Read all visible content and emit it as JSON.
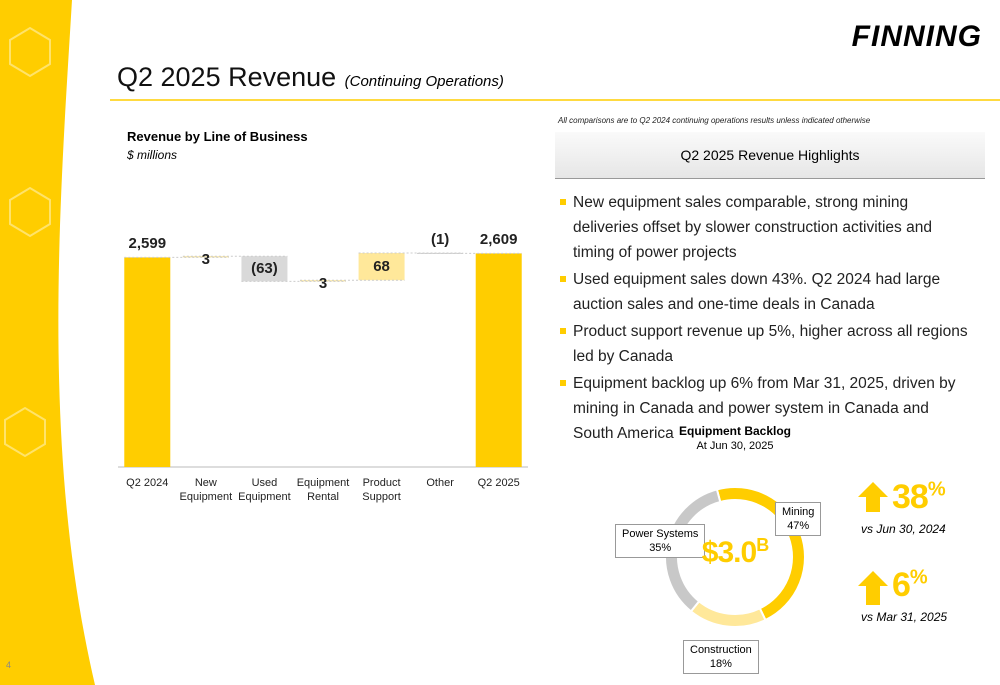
{
  "logo": "FINNING",
  "title": "Q2 2025 Revenue",
  "subtitle": "(Continuing Operations)",
  "page_number": "4",
  "note": "All comparisons are to Q2 2024 continuing operations results unless indicated otherwise",
  "highlights": {
    "title": "Q2 2025 Revenue Highlights",
    "bullets": [
      "New equipment sales comparable, strong mining deliveries offset by slower construction activities and timing of power projects",
      "Used equipment sales down 43%. Q2 2024 had large auction sales and one-time deals in Canada",
      "Product support revenue up 5%, higher across all regions led by Canada",
      "Equipment backlog up 6% from Mar 31, 2025, driven by mining in Canada and power system in Canada and South America"
    ]
  },
  "chart_data": [
    {
      "type": "waterfall",
      "title": "Revenue by Line of Business",
      "subtitle": "$ millions",
      "categories": [
        "Q2 2024",
        "New Equipment",
        "Used Equipment",
        "Equipment Rental",
        "Product Support",
        "Other",
        "Q2 2025"
      ],
      "values": [
        2599,
        3,
        -63,
        3,
        68,
        -1,
        2609
      ],
      "value_labels": [
        "2,599",
        "3",
        "(63)",
        "3",
        "68",
        "(1)",
        "2,609"
      ],
      "colors": [
        "#ffcd00",
        "#ffe89a",
        "#d9d9d9",
        "#ffe89a",
        "#ffe89a",
        "#d9d9d9",
        "#ffcd00"
      ],
      "ylim": [
        2075,
        2650
      ]
    },
    {
      "type": "donut",
      "title": "Equipment Backlog",
      "subtitle": "At Jun 30, 2025",
      "center_label": "$3.0",
      "center_unit": "B",
      "categories": [
        "Mining",
        "Construction",
        "Power Systems"
      ],
      "values": [
        47,
        18,
        35
      ],
      "value_labels": [
        "47%",
        "18%",
        "35%"
      ],
      "colors": [
        "#ffcd00",
        "#ffe89a",
        "#c8c8c8"
      ]
    }
  ],
  "stats": [
    {
      "value": "38",
      "unit": "%",
      "caption": "vs Jun 30, 2024"
    },
    {
      "value": "6",
      "unit": "%",
      "caption": "vs Mar 31, 2025"
    }
  ]
}
